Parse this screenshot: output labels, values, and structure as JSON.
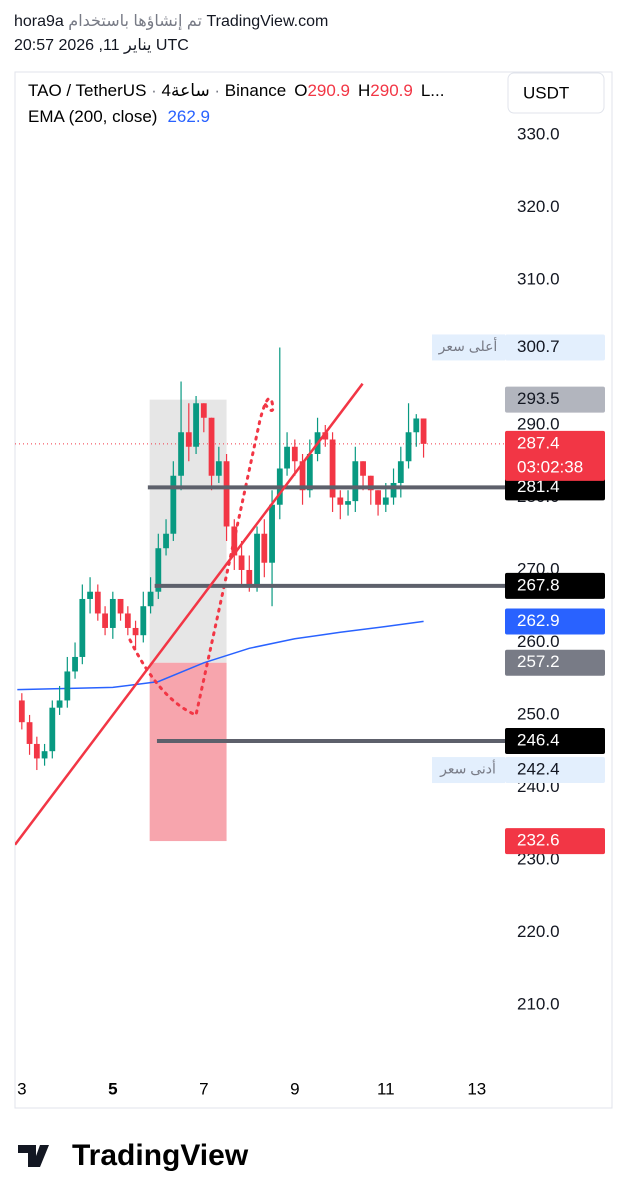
{
  "header": {
    "author": "hora9a",
    "credit": "تم إنشاؤها باستخدام",
    "site": "TradingView.com",
    "timestamp": "20:57 2026 ,11 يناير UTC"
  },
  "chart_data": {
    "type": "candlestick",
    "symbol": "TAO / TetherUS",
    "interval": "4ساعة",
    "exchange": "Binance",
    "legend_ohlc": [
      {
        "label": "O",
        "value": 290.9
      },
      {
        "label": "H",
        "value": 290.9
      }
    ],
    "legend_more": "L...",
    "currency": "USDT",
    "up_color": "#089981",
    "down_color": "#f23645",
    "x": [
      3,
      3.17,
      3.33,
      3.5,
      3.67,
      3.83,
      4,
      4.17,
      4.33,
      4.5,
      4.67,
      4.83,
      5,
      5.17,
      5.33,
      5.5,
      5.67,
      5.83,
      6,
      6.17,
      6.33,
      6.5,
      6.67,
      6.83,
      7,
      7.17,
      7.33,
      7.5,
      7.67,
      7.83,
      8,
      8.17,
      8.33,
      8.5,
      8.67,
      8.83,
      9,
      9.17,
      9.33,
      9.5,
      9.67,
      9.83,
      10,
      10.17,
      10.33,
      10.5,
      10.67,
      10.83,
      11,
      11.17,
      11.33,
      11.5,
      11.67,
      11.83
    ],
    "open": [
      252,
      249,
      246,
      244,
      245,
      251,
      252,
      256,
      258,
      266,
      267,
      264,
      262,
      266,
      264,
      262,
      261,
      265,
      267,
      273,
      275,
      283,
      289,
      287,
      293,
      291,
      283,
      285,
      276,
      272,
      270,
      268,
      275,
      271,
      279,
      284,
      287,
      285,
      281,
      286,
      289,
      288,
      280,
      279,
      279.5,
      285,
      283,
      281,
      279,
      280,
      282,
      285,
      289,
      290.9
    ],
    "high": [
      253,
      250,
      247,
      246,
      252,
      254,
      258,
      260,
      268,
      269,
      268,
      265,
      267,
      266,
      265,
      263,
      267,
      269,
      275,
      277,
      285,
      296,
      293,
      294,
      293,
      291,
      287,
      286,
      277,
      274,
      272,
      276,
      277,
      281,
      300.7,
      289,
      288,
      286,
      288,
      291,
      290,
      289,
      281,
      281,
      287,
      285,
      283,
      281,
      282,
      284,
      287,
      293,
      291.5,
      290.9
    ],
    "low": [
      248,
      244.5,
      242.4,
      243,
      244,
      250,
      251,
      255,
      257,
      264,
      263,
      261,
      260.5,
      263,
      261,
      259,
      260,
      264,
      266,
      272,
      274,
      281,
      285,
      286,
      289,
      281,
      282,
      274,
      270,
      268,
      267,
      267,
      269,
      265,
      277,
      283,
      283,
      279,
      280,
      285,
      287,
      278,
      277,
      277.5,
      278,
      281,
      279,
      277.5,
      278,
      279,
      280,
      284,
      287,
      285.5
    ],
    "close": [
      249,
      246,
      244,
      245,
      251,
      252,
      256,
      258,
      266,
      267,
      264,
      262,
      266,
      264,
      262,
      261,
      265,
      267,
      273,
      275,
      283,
      289,
      287,
      293,
      291,
      283,
      285,
      276,
      272,
      270,
      268,
      275,
      271,
      279,
      284,
      287,
      285,
      281,
      286,
      289,
      288,
      280,
      279,
      279.5,
      285,
      283,
      281,
      279,
      280,
      282,
      285,
      289,
      290.9,
      287.4
    ],
    "ema": {
      "name": "EMA (200, close)",
      "value": 262.9,
      "color": "#2962ff",
      "x": [
        2.9,
        5,
        6,
        7,
        8,
        9,
        10,
        11,
        11.83
      ],
      "values": [
        253.5,
        253.8,
        254.6,
        257.2,
        259.2,
        260.5,
        261.4,
        262.2,
        262.9
      ]
    },
    "last_price": {
      "value": 287.4,
      "countdown": "03:02:38"
    },
    "levels": [
      {
        "value": 281.4,
        "x_start": 5.77
      },
      {
        "value": 267.8,
        "x_start": 5.92
      },
      {
        "value": 246.4,
        "x_start": 5.97
      }
    ],
    "position": {
      "x": [
        5.81,
        7.5
      ],
      "target": 293.5,
      "entry": 257.2,
      "stop": 232.6
    },
    "annotations": {
      "high": {
        "text": "أعلى سعر",
        "value": 300.7
      },
      "low": {
        "text": "أدنى سعر",
        "value": 242.4
      }
    },
    "trend_line": {
      "x": [
        2.85,
        10.49
      ],
      "y": [
        232.1,
        295.7
      ],
      "color": "#f23645"
    },
    "xlim": [
      2.85,
      13.62
    ],
    "xticks": [
      3,
      5,
      7,
      9,
      11,
      13
    ],
    "bold_xticks": [
      5
    ],
    "ylim": [
      203.5,
      338.7
    ],
    "yticks": [
      {
        "value": 330,
        "label": "330.0"
      },
      {
        "value": 320,
        "label": "320.0"
      },
      {
        "value": 310,
        "label": "310.0"
      },
      {
        "value": 300,
        "label": "300.0"
      },
      {
        "value": 290,
        "label": "290.0"
      },
      {
        "value": 280,
        "label": "280.0"
      },
      {
        "value": 270,
        "label": "270.0"
      },
      {
        "value": 260,
        "label": "260.0"
      },
      {
        "value": 250,
        "label": "250.0"
      },
      {
        "value": 240,
        "label": "240.0"
      },
      {
        "value": 230,
        "label": "230.0"
      },
      {
        "value": 220,
        "label": "220.0"
      },
      {
        "value": 210,
        "label": "210.0"
      }
    ]
  },
  "footer": {
    "brand": "TradingView"
  }
}
